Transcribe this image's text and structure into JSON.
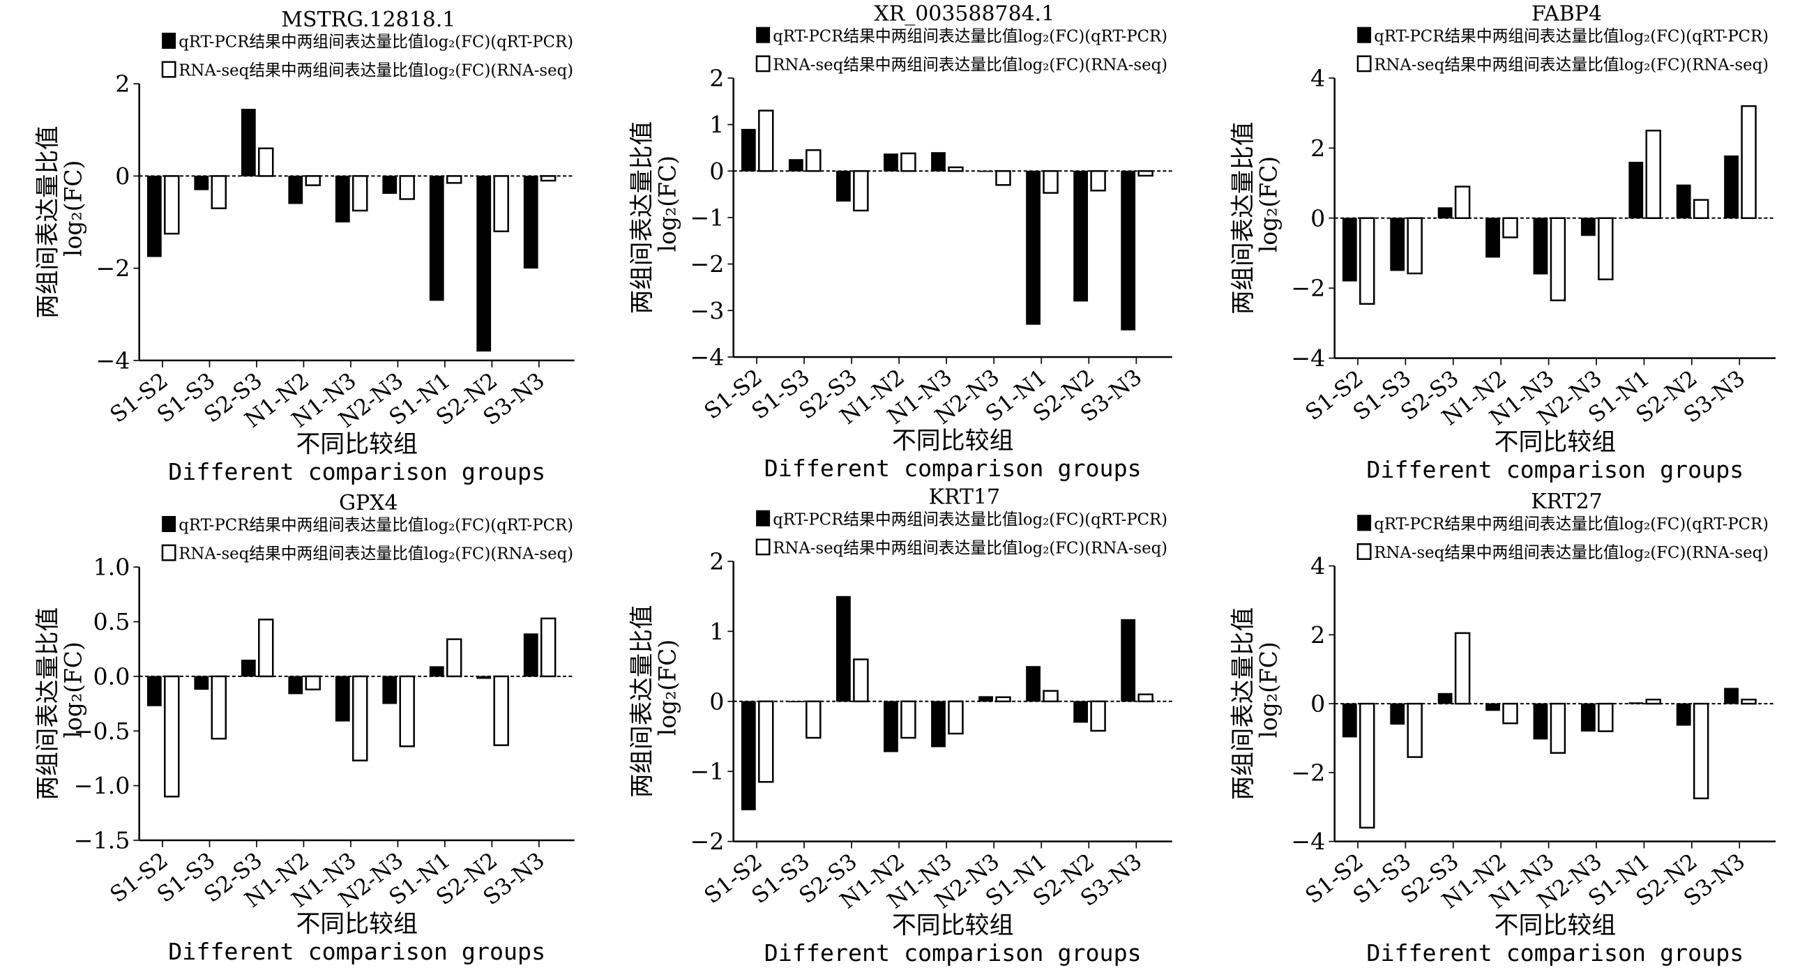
{
  "legend": {
    "qpcr": "qRT-PCR结果中两组间表达量比值log₂(FC)(qRT-PCR)",
    "rnaseq": "RNA-seq结果中两组间表达量比值log₂(FC)(RNA-seq)"
  },
  "colors": {
    "qpcr": "#000000",
    "rnaseq": "#ffffff"
  },
  "chart_data": [
    {
      "type": "bar",
      "title": "MSTRG.12818.1",
      "ylim": [
        -4,
        2
      ],
      "yticks": [
        "2",
        "0",
        "−2",
        "−4"
      ],
      "ytick_values": [
        2,
        0,
        -2,
        -4
      ],
      "ylabel": [
        "两组间表达量比值",
        "log₂(FC)"
      ],
      "xlabel": [
        "不同比较组",
        "Different comparison groups"
      ],
      "categories": [
        "S1-S2",
        "S1-S3",
        "S2-S3",
        "N1-N2",
        "N1-N3",
        "N2-N3",
        "S1-N1",
        "S2-N2",
        "S3-N3"
      ],
      "series": [
        {
          "name": "qRT-PCR",
          "values": [
            -1.75,
            -0.3,
            1.45,
            -0.6,
            -1.0,
            -0.38,
            -2.7,
            -3.8,
            -2.0
          ]
        },
        {
          "name": "RNA-seq",
          "values": [
            -1.25,
            -0.7,
            0.6,
            -0.2,
            -0.75,
            -0.5,
            -0.15,
            -1.2,
            -0.1
          ]
        }
      ]
    },
    {
      "type": "bar",
      "title": "XR_003588784.1",
      "ylim": [
        -4,
        2
      ],
      "yticks": [
        "2",
        "1",
        "0",
        "−1",
        "−2",
        "−3",
        "−4"
      ],
      "ytick_values": [
        2,
        1,
        0,
        -1,
        -2,
        -3,
        -4
      ],
      "ylabel": [
        "两组间表达量比值",
        "log₂(FC)"
      ],
      "xlabel": [
        "不同比较组",
        "Different comparison groups"
      ],
      "categories": [
        "S1-S2",
        "S1-S3",
        "S2-S3",
        "N1-N2",
        "N1-N3",
        "N2-N3",
        "S1-N1",
        "S2-N2",
        "S3-N3"
      ],
      "series": [
        {
          "name": "qRT-PCR",
          "values": [
            0.9,
            0.25,
            -0.65,
            0.37,
            0.4,
            0.0,
            -3.3,
            -2.8,
            -3.42
          ]
        },
        {
          "name": "RNA-seq",
          "values": [
            1.3,
            0.45,
            -0.85,
            0.38,
            0.08,
            -0.3,
            -0.47,
            -0.42,
            -0.1
          ]
        }
      ]
    },
    {
      "type": "bar",
      "title": "FABP4",
      "ylim": [
        -4,
        4
      ],
      "yticks": [
        "4",
        "2",
        "0",
        "−2",
        "−4"
      ],
      "ytick_values": [
        4,
        2,
        0,
        -2,
        -4
      ],
      "ylabel": [
        "两组间表达量比值",
        "log₂(FC)"
      ],
      "xlabel": [
        "不同比较组",
        "Different comparison groups"
      ],
      "categories": [
        "S1-S2",
        "S1-S3",
        "S2-S3",
        "N1-N2",
        "N1-N3",
        "N2-N3",
        "S1-N1",
        "S2-N2",
        "S3-N3"
      ],
      "series": [
        {
          "name": "qRT-PCR",
          "values": [
            -1.8,
            -1.5,
            0.3,
            -1.12,
            -1.6,
            -0.5,
            1.6,
            0.95,
            1.78
          ]
        },
        {
          "name": "RNA-seq",
          "values": [
            -2.45,
            -1.58,
            0.9,
            -0.55,
            -2.35,
            -1.75,
            2.5,
            0.52,
            3.2
          ]
        }
      ]
    },
    {
      "type": "bar",
      "title": "GPX4",
      "ylim": [
        -1.5,
        1.0
      ],
      "yticks": [
        "1.0",
        "0.5",
        "0.0",
        "−0.5",
        "−1.0",
        "−1.5"
      ],
      "ytick_values": [
        1,
        0.5,
        0,
        -0.5,
        -1,
        -1.5
      ],
      "ylabel": [
        "两组间表达量比值",
        "log₂(FC)"
      ],
      "xlabel": [
        "不同比较组",
        "Different comparison groups"
      ],
      "categories": [
        "S1-S2",
        "S1-S3",
        "S2-S3",
        "N1-N2",
        "N1-N3",
        "N2-N3",
        "S1-N1",
        "S2-N2",
        "S3-N3"
      ],
      "series": [
        {
          "name": "qRT-PCR",
          "values": [
            -0.27,
            -0.12,
            0.15,
            -0.16,
            -0.41,
            -0.25,
            0.09,
            -0.02,
            0.39
          ]
        },
        {
          "name": "RNA-seq",
          "values": [
            -1.1,
            -0.57,
            0.52,
            -0.12,
            -0.77,
            -0.64,
            0.34,
            -0.63,
            0.53
          ]
        }
      ]
    },
    {
      "type": "bar",
      "title": "KRT17",
      "ylim": [
        -2,
        2
      ],
      "yticks": [
        "2",
        "1",
        "0",
        "−1",
        "−2"
      ],
      "ytick_values": [
        2,
        1,
        0,
        -1,
        -2
      ],
      "ylabel": [
        "两组间表达量比值",
        "log₂(FC)"
      ],
      "xlabel": [
        "不同比较组",
        "Different comparison groups"
      ],
      "categories": [
        "S1-S2",
        "S1-S3",
        "S2-S3",
        "N1-N2",
        "N1-N3",
        "N2-N3",
        "S1-N1",
        "S2-N2",
        "S3-N3"
      ],
      "series": [
        {
          "name": "qRT-PCR",
          "values": [
            -1.55,
            0.0,
            1.5,
            -0.72,
            -0.65,
            0.07,
            0.5,
            -0.3,
            1.17
          ]
        },
        {
          "name": "RNA-seq",
          "values": [
            -1.15,
            -0.52,
            0.6,
            -0.52,
            -0.46,
            0.06,
            0.15,
            -0.42,
            0.1
          ]
        }
      ]
    },
    {
      "type": "bar",
      "title": "KRT27",
      "ylim": [
        -4,
        4
      ],
      "yticks": [
        "4",
        "2",
        "0",
        "−2",
        "−4"
      ],
      "ytick_values": [
        4,
        2,
        0,
        -2,
        -4
      ],
      "ylabel": [
        "两组间表达量比值",
        "log₂(FC)"
      ],
      "xlabel": [
        "不同比较组",
        "Different comparison groups"
      ],
      "categories": [
        "S1-S2",
        "S1-S3",
        "S2-S3",
        "N1-N2",
        "N1-N3",
        "N2-N3",
        "S1-N1",
        "S2-N2",
        "S3-N3"
      ],
      "series": [
        {
          "name": "qRT-PCR",
          "values": [
            -0.97,
            -0.6,
            0.3,
            -0.2,
            -1.03,
            -0.8,
            0.03,
            -0.63,
            0.45
          ]
        },
        {
          "name": "RNA-seq",
          "values": [
            -3.6,
            -1.55,
            2.05,
            -0.57,
            -1.43,
            -0.8,
            0.12,
            -2.75,
            0.12
          ]
        }
      ]
    }
  ]
}
